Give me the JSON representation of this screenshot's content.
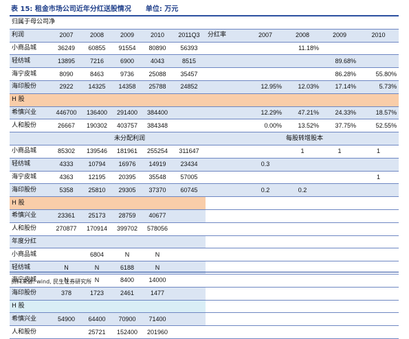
{
  "title": {
    "label": "表 15:",
    "text": "租金市场公司近年分红送股情况",
    "unit": "单位: 万元"
  },
  "source": "资料来源: wind, 民生证券研究所",
  "sections": {
    "parent_net": "归属于母公司净",
    "profit": "利润",
    "undistributed": "未分配利润",
    "annual_dividend": "年度分红",
    "h_share": "H 股",
    "bonus_per_share": "每股转增股本"
  },
  "years_left": [
    "2007",
    "2008",
    "2009",
    "2010",
    "2011Q3"
  ],
  "dividend_rate_label": "分红率",
  "years_right": [
    "2007",
    "2008",
    "2009",
    "2010"
  ],
  "net_profit": [
    {
      "name": "小商品城",
      "values": [
        "36249",
        "60855",
        "91554",
        "80890",
        "56393"
      ],
      "rate": [
        "",
        "11.18%",
        "",
        ""
      ]
    },
    {
      "name": "轻纺城",
      "values": [
        "13895",
        "7216",
        "6900",
        "4043",
        "8515"
      ],
      "rate": [
        "",
        "",
        "89.68%",
        ""
      ]
    },
    {
      "name": "海宁皮城",
      "values": [
        "8090",
        "8463",
        "9736",
        "25088",
        "35457"
      ],
      "rate": [
        "",
        "",
        "86.28%",
        "55.80%"
      ]
    },
    {
      "name": "海印股份",
      "values": [
        "2922",
        "14325",
        "14358",
        "25788",
        "24852"
      ],
      "rate": [
        "12.95%",
        "12.03%",
        "17.14%",
        "5.73%"
      ]
    }
  ],
  "net_profit_h": [
    {
      "name": "希慎兴业",
      "values": [
        "446700",
        "136400",
        "291400",
        "384400",
        ""
      ],
      "rate": [
        "12.29%",
        "47.21%",
        "24.33%",
        "18.57%"
      ]
    },
    {
      "name": "人和股份",
      "values": [
        "26667",
        "190302",
        "403757",
        "384348",
        ""
      ],
      "rate": [
        "0.00%",
        "13.52%",
        "37.75%",
        "52.55%"
      ]
    }
  ],
  "undist": [
    {
      "name": "小商品城",
      "values": [
        "85302",
        "139546",
        "181961",
        "255254",
        "311647"
      ],
      "bonus": [
        "",
        "1",
        "1",
        "1"
      ]
    },
    {
      "name": "轻纺城",
      "values": [
        "4333",
        "10794",
        "16976",
        "14919",
        "23434"
      ],
      "bonus": [
        "0.3",
        "",
        "",
        ""
      ]
    },
    {
      "name": "海宁皮城",
      "values": [
        "4363",
        "12195",
        "20395",
        "35548",
        "57005"
      ],
      "bonus": [
        "",
        "",
        "",
        "1"
      ]
    },
    {
      "name": "海印股份",
      "values": [
        "5358",
        "25810",
        "29305",
        "37370",
        "60745"
      ],
      "bonus": [
        "0.2",
        "0.2",
        "",
        ""
      ]
    }
  ],
  "undist_h": [
    {
      "name": "希慎兴业",
      "values": [
        "23361",
        "25173",
        "28759",
        "40677",
        ""
      ]
    },
    {
      "name": "人和股份",
      "values": [
        "270877",
        "170914",
        "399702",
        "578056",
        ""
      ]
    }
  ],
  "annual": [
    {
      "name": "小商品城",
      "values": [
        "",
        "6804",
        "N",
        "N",
        ""
      ]
    },
    {
      "name": "轻纺城",
      "values": [
        "N",
        "N",
        "6188",
        "N",
        ""
      ]
    },
    {
      "name": "海宁皮城",
      "values": [
        "N",
        "N",
        "8400",
        "14000",
        ""
      ]
    },
    {
      "name": "海印股份",
      "values": [
        "378",
        "1723",
        "2461",
        "1477",
        ""
      ]
    }
  ],
  "annual_h": [
    {
      "name": "希慎兴业",
      "values": [
        "54900",
        "64400",
        "70900",
        "71400",
        ""
      ]
    },
    {
      "name": "人和股份",
      "values": [
        "",
        "25721",
        "152400",
        "201960",
        ""
      ]
    }
  ]
}
